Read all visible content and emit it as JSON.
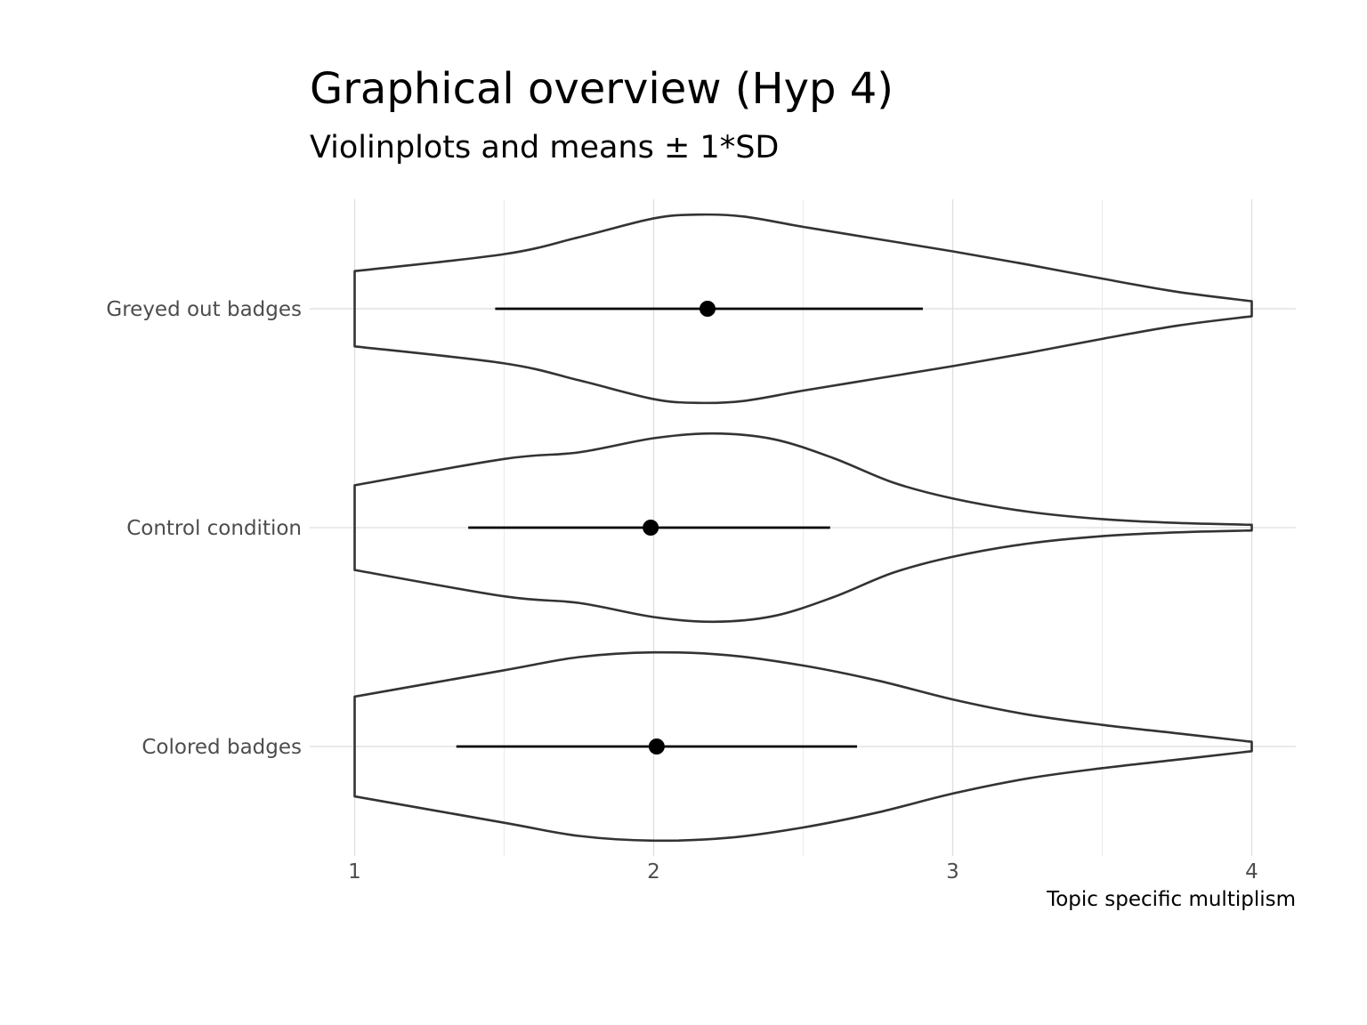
{
  "chart_data": {
    "type": "violin",
    "title": "Graphical overview (Hyp 4)",
    "subtitle": "Violinplots and means ± 1*SD",
    "xlabel": "Topic specific multiplism",
    "ylabel": "",
    "xlim": [
      1,
      4
    ],
    "x_ticks": [
      "1",
      "2",
      "3",
      "4"
    ],
    "grid": true,
    "orientation": "horizontal",
    "colors": {
      "violin_outline": "#333333",
      "point": "#000000",
      "grid": "#dedede",
      "tick_text": "#4d4d4d"
    },
    "categories": [
      "Greyed out badges",
      "Control condition",
      "Colored badges"
    ],
    "series": [
      {
        "name": "Greyed out badges",
        "mean": 2.18,
        "sd_low": 1.47,
        "sd_high": 2.9,
        "density_x": [
          1.0,
          1.5,
          1.75,
          2.0,
          2.15,
          2.3,
          2.5,
          2.75,
          3.0,
          3.25,
          3.5,
          3.75,
          4.0
        ],
        "density": [
          0.4,
          0.58,
          0.76,
          0.96,
          1.0,
          0.98,
          0.87,
          0.74,
          0.61,
          0.47,
          0.32,
          0.18,
          0.08
        ]
      },
      {
        "name": "Control condition",
        "mean": 1.99,
        "sd_low": 1.38,
        "sd_high": 2.59,
        "density_x": [
          1.0,
          1.5,
          1.75,
          2.0,
          2.2,
          2.4,
          2.6,
          2.8,
          3.0,
          3.25,
          3.5,
          3.75,
          4.0
        ],
        "density": [
          0.45,
          0.73,
          0.8,
          0.95,
          1.0,
          0.94,
          0.74,
          0.48,
          0.31,
          0.17,
          0.09,
          0.05,
          0.03
        ]
      },
      {
        "name": "Colored badges",
        "mean": 2.01,
        "sd_low": 1.34,
        "sd_high": 2.68,
        "density_x": [
          1.0,
          1.5,
          1.75,
          2.0,
          2.25,
          2.5,
          2.75,
          3.0,
          3.25,
          3.5,
          3.75,
          4.0
        ],
        "density": [
          0.53,
          0.81,
          0.95,
          1.0,
          0.97,
          0.86,
          0.7,
          0.5,
          0.34,
          0.23,
          0.14,
          0.05
        ]
      }
    ]
  }
}
